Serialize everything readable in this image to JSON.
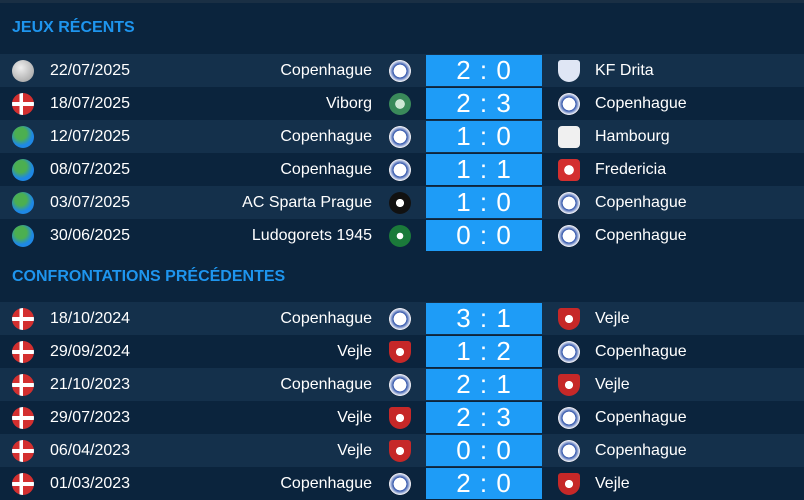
{
  "sections": [
    {
      "title": "JEUX RÉCENTS",
      "matches": [
        {
          "comp_icon": "world-grey",
          "date": "22/07/2025",
          "home": "Copenhague",
          "home_crest": "fck",
          "score": "2 : 0",
          "away": "KF Drita",
          "away_crest": "drita"
        },
        {
          "comp_icon": "dk",
          "date": "18/07/2025",
          "home": "Viborg",
          "home_crest": "vib",
          "score": "2 : 3",
          "away": "Copenhague",
          "away_crest": "fck"
        },
        {
          "comp_icon": "world",
          "date": "12/07/2025",
          "home": "Copenhague",
          "home_crest": "fck",
          "score": "1 : 0",
          "away": "Hambourg",
          "away_crest": "ham"
        },
        {
          "comp_icon": "world",
          "date": "08/07/2025",
          "home": "Copenhague",
          "home_crest": "fck",
          "score": "1 : 1",
          "away": "Fredericia",
          "away_crest": "fre"
        },
        {
          "comp_icon": "world",
          "date": "03/07/2025",
          "home": "AC Sparta Prague",
          "home_crest": "spa",
          "score": "1 : 0",
          "away": "Copenhague",
          "away_crest": "fck"
        },
        {
          "comp_icon": "world",
          "date": "30/06/2025",
          "home": "Ludogorets 1945",
          "home_crest": "lud",
          "score": "0 : 0",
          "away": "Copenhague",
          "away_crest": "fck"
        }
      ]
    },
    {
      "title": "CONFRONTATIONS PRÉCÉDENTES",
      "matches": [
        {
          "comp_icon": "dk",
          "date": "18/10/2024",
          "home": "Copenhague",
          "home_crest": "fck",
          "score": "3 : 1",
          "away": "Vejle",
          "away_crest": "vej"
        },
        {
          "comp_icon": "dk",
          "date": "29/09/2024",
          "home": "Vejle",
          "home_crest": "vej",
          "score": "1 : 2",
          "away": "Copenhague",
          "away_crest": "fck"
        },
        {
          "comp_icon": "dk",
          "date": "21/10/2023",
          "home": "Copenhague",
          "home_crest": "fck",
          "score": "2 : 1",
          "away": "Vejle",
          "away_crest": "vej"
        },
        {
          "comp_icon": "dk",
          "date": "29/07/2023",
          "home": "Vejle",
          "home_crest": "vej",
          "score": "2 : 3",
          "away": "Copenhague",
          "away_crest": "fck"
        },
        {
          "comp_icon": "dk",
          "date": "06/04/2023",
          "home": "Vejle",
          "home_crest": "vej",
          "score": "0 : 0",
          "away": "Copenhague",
          "away_crest": "fck"
        },
        {
          "comp_icon": "dk",
          "date": "01/03/2023",
          "home": "Copenhague",
          "home_crest": "fck",
          "score": "2 : 0",
          "away": "Vejle",
          "away_crest": "vej"
        }
      ]
    }
  ],
  "colors": {
    "background": "#0b243d",
    "row_alt": "#14304b",
    "accent": "#1e95ee",
    "score_bg": "#1e9cf7"
  }
}
